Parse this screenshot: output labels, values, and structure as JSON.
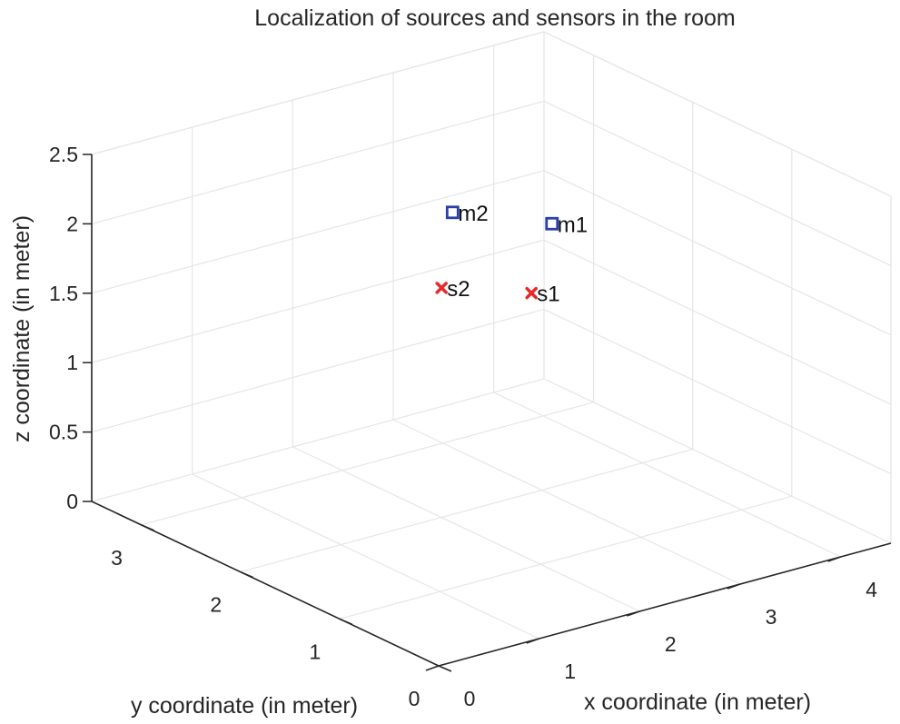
{
  "chart_data": {
    "type": "scatter",
    "projection": "3d",
    "title": "Localization of sources and sensors in the room",
    "xlabel": "x coordinate (in meter)",
    "ylabel": "y coordinate (in meter)",
    "zlabel": "z coordinate (in meter)",
    "xlim": [
      0,
      4.5
    ],
    "ylim": [
      0,
      3.5
    ],
    "zlim": [
      0,
      2.5
    ],
    "xticks": [
      "0",
      "1",
      "2",
      "3",
      "4"
    ],
    "yticks": [
      "0",
      "1",
      "2",
      "3"
    ],
    "zticks": [
      "0",
      "0.5",
      "1",
      "1.5",
      "2",
      "2.5"
    ],
    "grid": true,
    "colors": {
      "sources": "#e52a2a",
      "sensors": "#2b3fa8",
      "grid": "#e6e6e6",
      "axis": "#262626"
    },
    "series": [
      {
        "marker": "x",
        "points": [
          {
            "label": "s1",
            "x": 2.6,
            "y": 1.7,
            "z": 1.6
          },
          {
            "label": "s2",
            "x": 2.1,
            "y": 2.1,
            "z": 1.6
          }
        ]
      },
      {
        "marker": "square",
        "points": [
          {
            "label": "m1",
            "x": 3.1,
            "y": 2.0,
            "z": 1.9
          },
          {
            "label": "m2",
            "x": 2.9,
            "y": 2.8,
            "z": 1.75
          }
        ]
      }
    ]
  }
}
